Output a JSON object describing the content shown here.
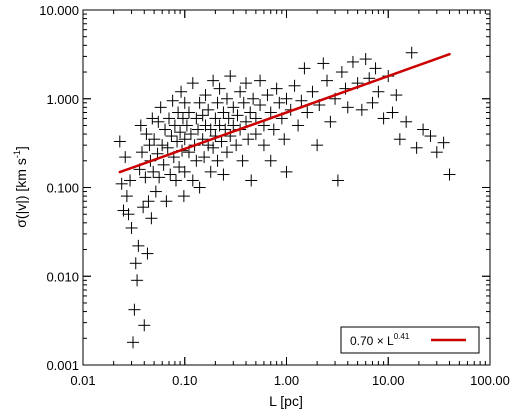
{
  "chart_data": {
    "type": "scatter",
    "title": "",
    "xlabel": "L [pc]",
    "ylabel_parts": {
      "base": "σ(|v|) [km s",
      "sup": "-1",
      "end": "]"
    },
    "x_scale": "log",
    "y_scale": "log",
    "xlim": [
      0.01,
      100
    ],
    "ylim": [
      0.001,
      10
    ],
    "x_ticks": [
      {
        "value": 0.01,
        "label": "0.01"
      },
      {
        "value": 0.1,
        "label": "0.10"
      },
      {
        "value": 1,
        "label": "1.00"
      },
      {
        "value": 10,
        "label": "10.00"
      },
      {
        "value": 100,
        "label": "100.00"
      }
    ],
    "y_ticks": [
      {
        "value": 0.001,
        "label": "0.001"
      },
      {
        "value": 0.01,
        "label": "0.010"
      },
      {
        "value": 0.1,
        "label": "0.100"
      },
      {
        "value": 1,
        "label": "1.000"
      },
      {
        "value": 10,
        "label": "10.000"
      }
    ],
    "grid": false,
    "legend_position": "bottom-right",
    "series": [
      {
        "marker": "plus",
        "color": "#000000",
        "points": [
          [
            0.023,
            0.33
          ],
          [
            0.024,
            0.11
          ],
          [
            0.025,
            0.055
          ],
          [
            0.026,
            0.22
          ],
          [
            0.027,
            0.08
          ],
          [
            0.028,
            0.05
          ],
          [
            0.029,
            0.12
          ],
          [
            0.03,
            0.035
          ],
          [
            0.031,
            0.0018
          ],
          [
            0.032,
            0.0042
          ],
          [
            0.033,
            0.014
          ],
          [
            0.034,
            0.009
          ],
          [
            0.035,
            0.022
          ],
          [
            0.036,
            0.16
          ],
          [
            0.037,
            0.5
          ],
          [
            0.038,
            0.25
          ],
          [
            0.039,
            0.06
          ],
          [
            0.04,
            0.0028
          ],
          [
            0.041,
            0.13
          ],
          [
            0.042,
            0.4
          ],
          [
            0.043,
            0.018
          ],
          [
            0.044,
            0.07
          ],
          [
            0.045,
            0.3
          ],
          [
            0.046,
            0.2
          ],
          [
            0.047,
            0.045
          ],
          [
            0.048,
            0.6
          ],
          [
            0.049,
            0.15
          ],
          [
            0.05,
            0.35
          ],
          [
            0.052,
            0.09
          ],
          [
            0.054,
            0.24
          ],
          [
            0.055,
            0.55
          ],
          [
            0.056,
            0.13
          ],
          [
            0.058,
            0.8
          ],
          [
            0.06,
            0.3
          ],
          [
            0.062,
            0.18
          ],
          [
            0.064,
            0.45
          ],
          [
            0.066,
            0.07
          ],
          [
            0.068,
            0.28
          ],
          [
            0.07,
            0.6
          ],
          [
            0.072,
            0.14
          ],
          [
            0.074,
            0.38
          ],
          [
            0.076,
            0.95
          ],
          [
            0.078,
            0.22
          ],
          [
            0.08,
            0.5
          ],
          [
            0.082,
            0.12
          ],
          [
            0.084,
            0.33
          ],
          [
            0.086,
            0.7
          ],
          [
            0.088,
            0.17
          ],
          [
            0.09,
            0.42
          ],
          [
            0.092,
            1.2
          ],
          [
            0.094,
            0.26
          ],
          [
            0.096,
            0.6
          ],
          [
            0.098,
            0.08
          ],
          [
            0.1,
            0.35
          ],
          [
            0.1,
            0.9
          ],
          [
            0.1,
            0.15
          ],
          [
            0.105,
            0.5
          ],
          [
            0.11,
            0.25
          ],
          [
            0.11,
            0.7
          ],
          [
            0.115,
            0.4
          ],
          [
            0.12,
            0.12
          ],
          [
            0.12,
            1.5
          ],
          [
            0.125,
            0.3
          ],
          [
            0.13,
            0.6
          ],
          [
            0.13,
            0.2
          ],
          [
            0.135,
            0.45
          ],
          [
            0.14,
            0.9
          ],
          [
            0.14,
            0.1
          ],
          [
            0.15,
            0.35
          ],
          [
            0.15,
            0.65
          ],
          [
            0.155,
            0.22
          ],
          [
            0.16,
            1.1
          ],
          [
            0.16,
            0.5
          ],
          [
            0.17,
            0.3
          ],
          [
            0.17,
            0.75
          ],
          [
            0.18,
            0.15
          ],
          [
            0.18,
            0.45
          ],
          [
            0.19,
            1.6
          ],
          [
            0.19,
            0.28
          ],
          [
            0.2,
            0.6
          ],
          [
            0.2,
            0.38
          ],
          [
            0.21,
            0.9
          ],
          [
            0.21,
            0.2
          ],
          [
            0.22,
            0.5
          ],
          [
            0.22,
            1.3
          ],
          [
            0.23,
            0.33
          ],
          [
            0.24,
            0.7
          ],
          [
            0.24,
            0.14
          ],
          [
            0.25,
            0.45
          ],
          [
            0.26,
            1.0
          ],
          [
            0.26,
            0.25
          ],
          [
            0.27,
            0.6
          ],
          [
            0.28,
            0.38
          ],
          [
            0.28,
            1.8
          ],
          [
            0.3,
            0.5
          ],
          [
            0.3,
            0.8
          ],
          [
            0.32,
            0.3
          ],
          [
            0.33,
            0.65
          ],
          [
            0.35,
            1.2
          ],
          [
            0.35,
            0.45
          ],
          [
            0.37,
            0.2
          ],
          [
            0.38,
            0.9
          ],
          [
            0.4,
            0.55
          ],
          [
            0.4,
            1.5
          ],
          [
            0.42,
            0.35
          ],
          [
            0.44,
            0.7
          ],
          [
            0.45,
            0.12
          ],
          [
            0.47,
            1.0
          ],
          [
            0.5,
            0.6
          ],
          [
            0.5,
            0.4
          ],
          [
            0.55,
            0.85
          ],
          [
            0.55,
            1.6
          ],
          [
            0.6,
            0.5
          ],
          [
            0.6,
            0.3
          ],
          [
            0.65,
            1.1
          ],
          [
            0.7,
            0.7
          ],
          [
            0.7,
            0.2
          ],
          [
            0.75,
            0.45
          ],
          [
            0.8,
            1.3
          ],
          [
            0.85,
            0.9
          ],
          [
            0.9,
            0.6
          ],
          [
            0.95,
            0.35
          ],
          [
            1.0,
            1.0
          ],
          [
            1.0,
            0.15
          ],
          [
            1.1,
            0.75
          ],
          [
            1.2,
            1.4
          ],
          [
            1.3,
            0.5
          ],
          [
            1.4,
            0.95
          ],
          [
            1.5,
            2.2
          ],
          [
            1.6,
            0.7
          ],
          [
            1.8,
            1.2
          ],
          [
            2.0,
            0.3
          ],
          [
            2.1,
            0.85
          ],
          [
            2.3,
            2.5
          ],
          [
            2.5,
            1.6
          ],
          [
            2.7,
            0.55
          ],
          [
            3.0,
            1.0
          ],
          [
            3.2,
            0.12
          ],
          [
            3.5,
            2.0
          ],
          [
            3.8,
            1.3
          ],
          [
            4.0,
            0.8
          ],
          [
            4.5,
            2.6
          ],
          [
            5.0,
            1.5
          ],
          [
            5.5,
            0.75
          ],
          [
            6.0,
            2.8
          ],
          [
            6.5,
            1.7
          ],
          [
            7.0,
            0.9
          ],
          [
            7.5,
            2.2
          ],
          [
            8.0,
            1.2
          ],
          [
            9.0,
            0.6
          ],
          [
            10.0,
            1.8
          ],
          [
            11.0,
            0.7
          ],
          [
            12.0,
            1.1
          ],
          [
            13.0,
            0.35
          ],
          [
            15.0,
            0.55
          ],
          [
            17.0,
            3.3
          ],
          [
            19.0,
            0.28
          ],
          [
            22.0,
            0.45
          ],
          [
            26.0,
            0.38
          ],
          [
            30.0,
            0.25
          ],
          [
            35.0,
            0.32
          ],
          [
            40.0,
            0.14
          ]
        ]
      }
    ],
    "fit": {
      "label_base": "0.70 × L",
      "label_exp": "0.41",
      "coefficient": 0.7,
      "exponent": 0.41,
      "x_range": [
        0.023,
        40
      ],
      "color": "#cc0000"
    }
  }
}
